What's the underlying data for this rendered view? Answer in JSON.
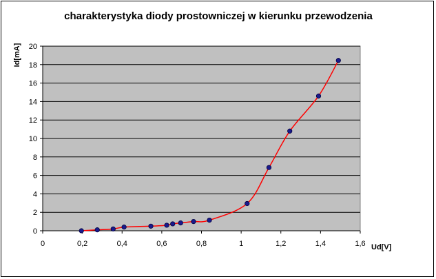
{
  "chart_data": {
    "type": "scatter",
    "title": "charakterystyka diody prostowniczej w kierunku przewodzenia",
    "xlabel": "Ud[V]",
    "ylabel": "Id[mA]",
    "xlim": [
      0,
      1.6
    ],
    "ylim": [
      0,
      20
    ],
    "x_ticks": [
      0,
      0.2,
      0.4,
      0.6,
      0.8,
      1,
      1.2,
      1.4,
      1.6
    ],
    "x_tick_labels": [
      "0",
      "0,2",
      "0,4",
      "0,6",
      "0,8",
      "1",
      "1,2",
      "1,4",
      "1,6"
    ],
    "y_ticks": [
      0,
      2,
      4,
      6,
      8,
      10,
      12,
      14,
      16,
      18,
      20
    ],
    "y_tick_labels": [
      "0",
      "2",
      "4",
      "6",
      "8",
      "10",
      "12",
      "14",
      "16",
      "18",
      "20"
    ],
    "grid": "horizontal",
    "legend": "none",
    "series": [
      {
        "x": [
          0.195,
          0.275,
          0.355,
          0.41,
          0.545,
          0.625,
          0.655,
          0.695,
          0.76,
          0.84,
          1.03,
          1.14,
          1.245,
          1.39,
          1.49
        ],
        "y": [
          0.0,
          0.1,
          0.2,
          0.4,
          0.5,
          0.6,
          0.75,
          0.85,
          1.0,
          1.15,
          2.95,
          6.85,
          10.8,
          14.6,
          18.45
        ],
        "marker_color": "#1a1a8c",
        "line_color": "#ff0000"
      }
    ],
    "plot_background": "#c0c0c0",
    "grid_color": "#000000"
  }
}
